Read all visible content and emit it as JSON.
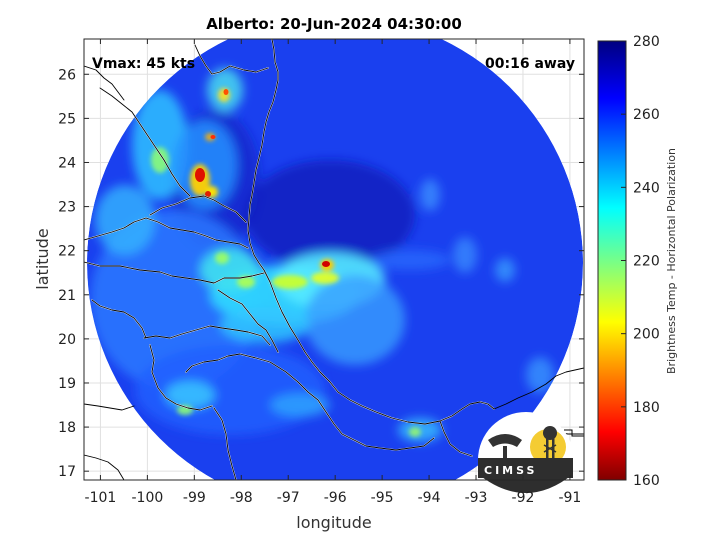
{
  "title": "Alberto: 20-Jun-2024 04:30:00",
  "vmax_label": "Vmax: 45 kts",
  "time_away_label": "00:16 away",
  "xlabel": "longitude",
  "ylabel": "latitude",
  "colorbar_label": "Brightness Temp - Horizontal Polarization",
  "logo_text": "CIMSS",
  "x_ticks": [
    "-101",
    "-100",
    "-99",
    "-98",
    "-97",
    "-96",
    "-95",
    "-94",
    "-93",
    "-92",
    "-91"
  ],
  "y_ticks": [
    "17",
    "18",
    "19",
    "20",
    "21",
    "22",
    "23",
    "24",
    "25",
    "26"
  ],
  "colorbar_ticks": [
    "160",
    "180",
    "200",
    "220",
    "240",
    "260",
    "280"
  ],
  "chart_data": {
    "type": "heatmap",
    "title": "Alberto: 20-Jun-2024 04:30:00",
    "xlabel": "longitude",
    "ylabel": "latitude",
    "xlim": [
      -101.35,
      -90.7
    ],
    "ylim": [
      16.8,
      26.8
    ],
    "colorbar": {
      "label": "Brightness Temp - Horizontal Polarization",
      "range": [
        160,
        280
      ],
      "colormap": "jet"
    },
    "grid": true,
    "storm_center_estimate": {
      "lon": -96.1,
      "lat": 21.7
    },
    "swath_center_estimate": {
      "lon": -95.95,
      "lat": 21.85,
      "radius_deg": 5.6
    }
  }
}
